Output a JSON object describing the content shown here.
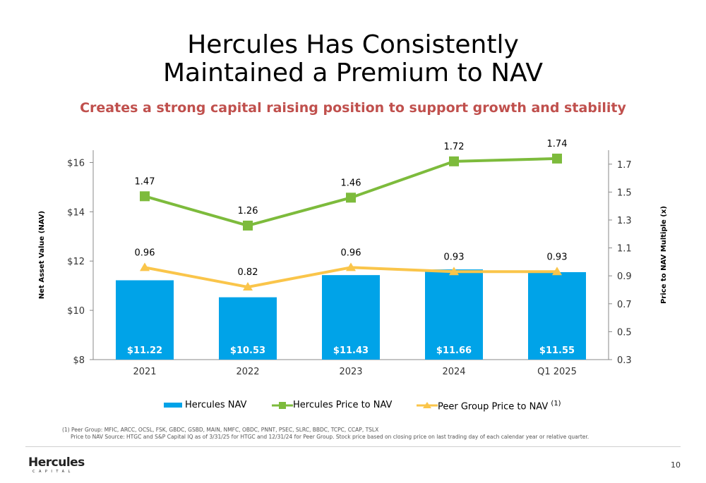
{
  "slide": {
    "title_line1": "Hercules Has Consistently",
    "title_line2": "Maintained a Premium to NAV",
    "subtitle": "Creates a strong capital raising position to support growth and stability",
    "footnote_line1": "(1) Peer Group: MFIC, ARCC, OCSL, FSK, GBDC, GSBD, MAIN, NMFC, OBDC, PNNT, PSEC, SLRC, BBDC, TCPC, CCAP, TSLX",
    "footnote_line2": "Price to NAV Source:  HTGC and S&P Capital IQ as of 3/31/25 for HTGC and 12/31/24 for Peer Group.  Stock price based on closing price on last trading day of each calendar year or relative quarter.",
    "page_number": "10",
    "logo_text": "Hercules",
    "logo_subtext": "CAPITAL"
  },
  "chart_data": {
    "type": "bar",
    "categories": [
      "2021",
      "2022",
      "2023",
      "2024",
      "Q1 2025"
    ],
    "ylabel": "Net Asset Value  (NAV)",
    "y2label": "Price to NAV Multiple (x)",
    "ylim": [
      8,
      16.5
    ],
    "y_ticks": [
      "$8",
      "$10",
      "$12",
      "$14",
      "$16"
    ],
    "y_tick_values": [
      8,
      10,
      12,
      14,
      16
    ],
    "y2lim": [
      0.3,
      1.8
    ],
    "y2_ticks": [
      "0.3",
      "0.5",
      "0.7",
      "0.9",
      "1.1",
      "1.3",
      "1.5",
      "1.7"
    ],
    "y2_tick_values": [
      0.3,
      0.5,
      0.7,
      0.9,
      1.1,
      1.3,
      1.5,
      1.7
    ],
    "series": [
      {
        "name": "Hercules NAV",
        "type": "bar",
        "axis": "left",
        "color": "#00A3E8",
        "values": [
          11.22,
          10.53,
          11.43,
          11.66,
          11.55
        ],
        "labels": [
          "$11.22",
          "$10.53",
          "$11.43",
          "$11.66",
          "$11.55"
        ]
      },
      {
        "name": "Hercules Price to NAV",
        "type": "line",
        "axis": "right",
        "color": "#7DBB3C",
        "marker": "square",
        "values": [
          1.47,
          1.26,
          1.46,
          1.72,
          1.74
        ],
        "labels": [
          "1.47",
          "1.26",
          "1.46",
          "1.72",
          "1.74"
        ]
      },
      {
        "name": "Peer Group Price to NAV",
        "type": "line",
        "axis": "right",
        "color": "#FAC54A",
        "marker": "triangle",
        "values": [
          0.96,
          0.82,
          0.96,
          0.93,
          0.93
        ],
        "labels": [
          "0.96",
          "0.82",
          "0.96",
          "0.93",
          "0.93"
        ]
      }
    ],
    "legend": {
      "items": [
        "Hercules NAV",
        "Hercules Price to NAV",
        "Peer Group Price to NAV"
      ],
      "superscript": "(1)",
      "position": "bottom"
    },
    "grid": false
  }
}
